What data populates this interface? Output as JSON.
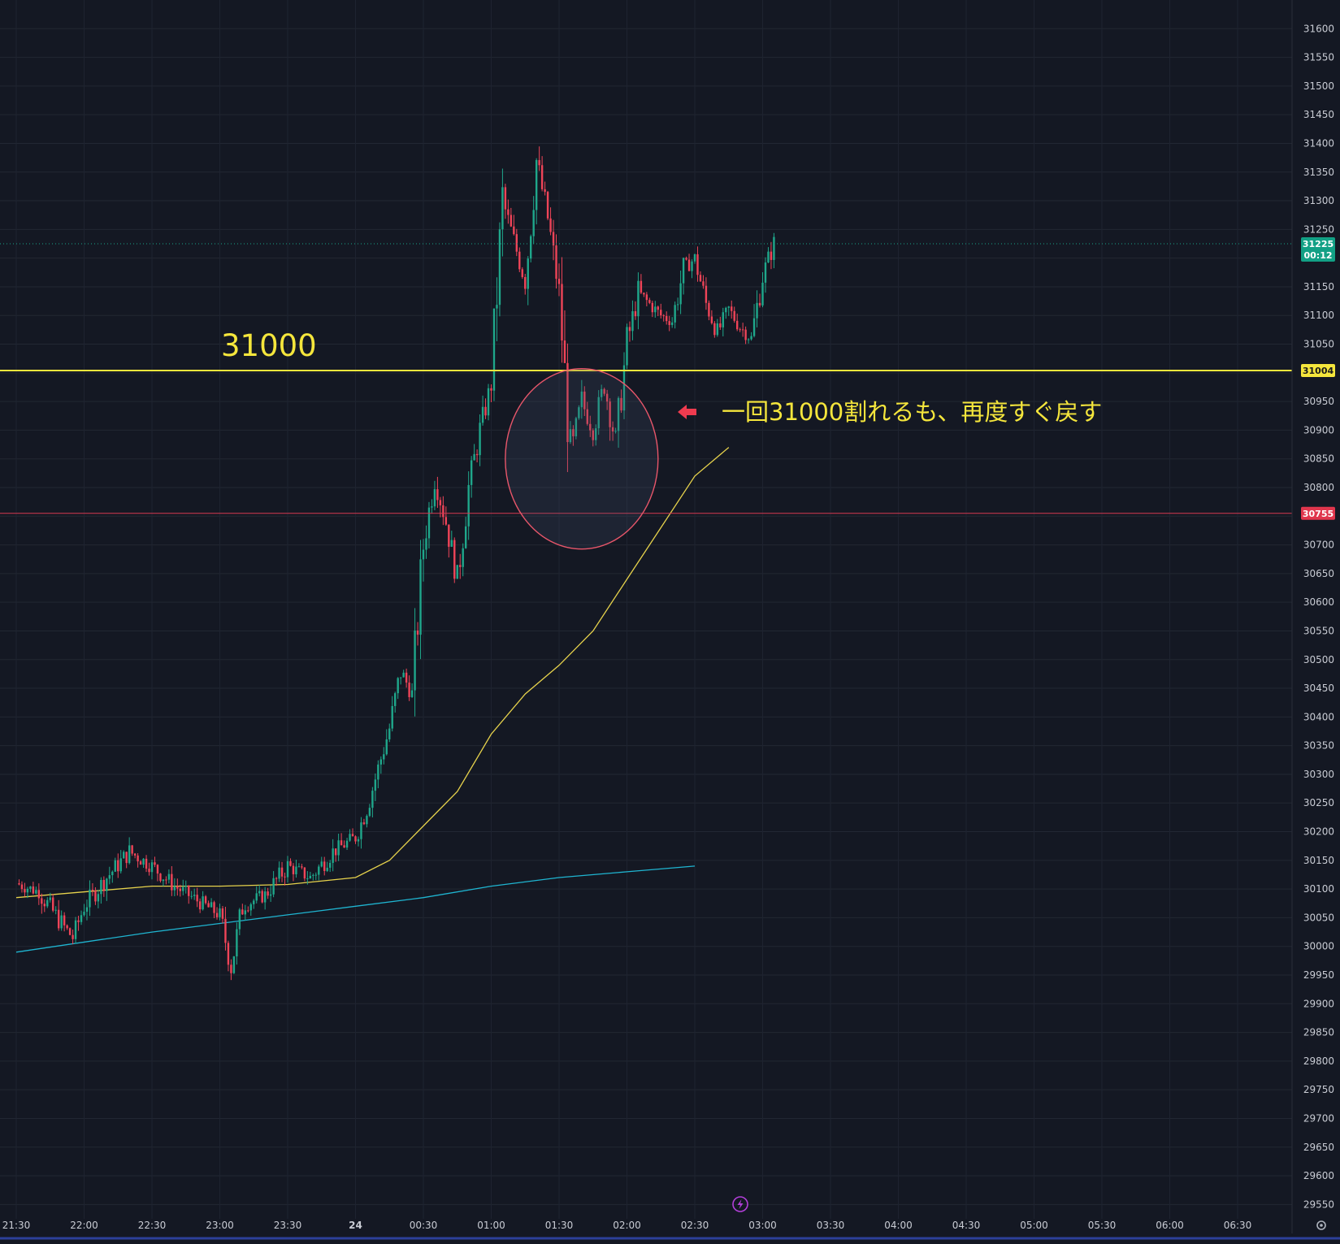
{
  "chart_data": {
    "type": "candlestick",
    "y_axis": {
      "ticks": [
        29550,
        29600,
        29650,
        29700,
        29750,
        29800,
        29850,
        29900,
        29950,
        30000,
        30050,
        30100,
        30150,
        30200,
        30250,
        30300,
        30350,
        30400,
        30450,
        30500,
        30550,
        30600,
        30650,
        30700,
        30750,
        30800,
        30850,
        30900,
        30950,
        31000,
        31050,
        31100,
        31150,
        31200,
        31250,
        31300,
        31350,
        31400,
        31450,
        31500,
        31550,
        31600
      ],
      "range": [
        29525,
        31650
      ],
      "side": "right"
    },
    "x_axis": {
      "ticks": [
        "21:30",
        "22:00",
        "22:30",
        "23:00",
        "23:30",
        "24",
        "00:30",
        "01:00",
        "01:30",
        "02:00",
        "02:30",
        "03:00",
        "03:30",
        "04:00",
        "04:30",
        "05:00",
        "05:30",
        "06:00",
        "06:30"
      ]
    },
    "grid": true,
    "price_path": [
      [
        "21:30",
        30110
      ],
      [
        "21:40",
        30095
      ],
      [
        "21:50",
        30040
      ],
      [
        "21:55",
        30015
      ],
      [
        "22:00",
        30070
      ],
      [
        "22:10",
        30120
      ],
      [
        "22:20",
        30165
      ],
      [
        "22:30",
        30140
      ],
      [
        "22:40",
        30105
      ],
      [
        "22:50",
        30080
      ],
      [
        "23:00",
        30055
      ],
      [
        "23:05",
        29965
      ],
      [
        "23:10",
        30070
      ],
      [
        "23:20",
        30090
      ],
      [
        "23:30",
        30140
      ],
      [
        "23:40",
        30120
      ],
      [
        "23:50",
        30165
      ],
      [
        "00:00",
        30190
      ],
      [
        "00:05",
        30240
      ],
      [
        "00:10",
        30310
      ],
      [
        "00:15",
        30380
      ],
      [
        "00:20",
        30480
      ],
      [
        "00:25",
        30440
      ],
      [
        "00:30",
        30700
      ],
      [
        "00:35",
        30820
      ],
      [
        "00:40",
        30740
      ],
      [
        "00:45",
        30640
      ],
      [
        "00:50",
        30800
      ],
      [
        "00:55",
        30900
      ],
      [
        "01:00",
        30980
      ],
      [
        "01:05",
        31300
      ],
      [
        "01:10",
        31230
      ],
      [
        "01:15",
        31160
      ],
      [
        "01:20",
        31370
      ],
      [
        "01:25",
        31270
      ],
      [
        "01:30",
        31140
      ],
      [
        "01:35",
        30850
      ],
      [
        "01:40",
        30950
      ],
      [
        "01:45",
        30900
      ],
      [
        "01:50",
        30980
      ],
      [
        "01:55",
        30880
      ],
      [
        "02:00",
        31050
      ],
      [
        "02:05",
        31140
      ],
      [
        "02:10",
        31120
      ],
      [
        "02:15",
        31100
      ],
      [
        "02:20",
        31090
      ],
      [
        "02:25",
        31180
      ],
      [
        "02:30",
        31200
      ],
      [
        "02:35",
        31120
      ],
      [
        "02:40",
        31070
      ],
      [
        "02:45",
        31110
      ],
      [
        "02:50",
        31080
      ],
      [
        "02:55",
        31060
      ],
      [
        "03:00",
        31170
      ],
      [
        "03:05",
        31225
      ]
    ],
    "moving_average_fast": {
      "color": "#e6d24c",
      "points": [
        [
          "21:30",
          30085
        ],
        [
          "22:30",
          30105
        ],
        [
          "23:00",
          30105
        ],
        [
          "23:30",
          30108
        ],
        [
          "00:00",
          30120
        ],
        [
          "00:15",
          30150
        ],
        [
          "00:30",
          30210
        ],
        [
          "00:45",
          30270
        ],
        [
          "01:00",
          30370
        ],
        [
          "01:15",
          30440
        ],
        [
          "01:30",
          30490
        ],
        [
          "01:45",
          30550
        ],
        [
          "02:00",
          30640
        ],
        [
          "02:15",
          30730
        ],
        [
          "02:30",
          30820
        ],
        [
          "02:45",
          30870
        ]
      ]
    },
    "moving_average_slow": {
      "color": "#1fb5d1",
      "points": [
        [
          "21:30",
          29990
        ],
        [
          "22:30",
          30025
        ],
        [
          "23:00",
          30040
        ],
        [
          "23:30",
          30055
        ],
        [
          "00:00",
          30070
        ],
        [
          "00:30",
          30085
        ],
        [
          "01:00",
          30105
        ],
        [
          "01:30",
          30120
        ],
        [
          "02:00",
          30130
        ],
        [
          "02:30",
          30140
        ]
      ]
    },
    "horizontal_lines": [
      {
        "value": 31004,
        "color": "#f5e63c"
      },
      {
        "value": 30755,
        "color": "#d83a52"
      }
    ],
    "last_price_line": {
      "value": 31225,
      "color": "#19a38a"
    },
    "price_tags": [
      {
        "value": 31225,
        "text": "31225",
        "sub": "00:12",
        "bg": "#12a085",
        "fg": "#ffffff"
      },
      {
        "value": 31004,
        "text": "31004",
        "bg": "#f5e63c",
        "fg": "#1a1a1a"
      },
      {
        "value": 30755,
        "text": "30755",
        "bg": "#e0364d",
        "fg": "#ffffff"
      }
    ],
    "annotations": {
      "level_label": "31000",
      "note": "一回31000割れるも、再度すぐ戻す",
      "circle_center": [
        "01:40",
        30850
      ],
      "colors": {
        "up": "#1fa78b",
        "down": "#ef4458",
        "circle": "#e8566a"
      }
    }
  },
  "ui": {
    "bolt_icon": "lightning-bolt-icon",
    "settings_icon": "gear-icon"
  }
}
